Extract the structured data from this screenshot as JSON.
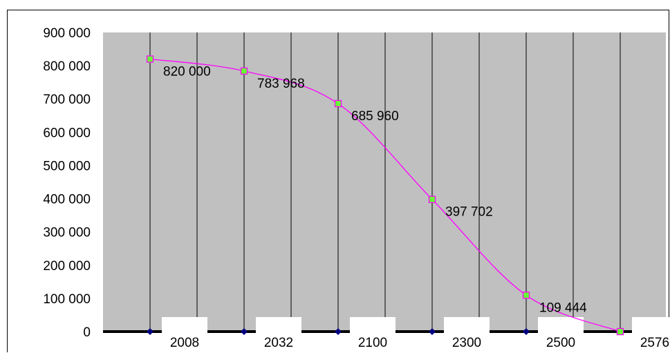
{
  "chart_data": {
    "type": "line",
    "categories": [
      "2008",
      "2032",
      "2100",
      "2300",
      "2500",
      "2576"
    ],
    "series": [
      {
        "values": [
          820000,
          783968,
          685960,
          397702,
          109444,
          0
        ]
      }
    ],
    "data_labels": [
      "820 000",
      "783 968",
      "685 960",
      "397 702",
      "109 444"
    ],
    "y_ticks": [
      {
        "value": 0,
        "label": "0"
      },
      {
        "value": 100000,
        "label": "100 000"
      },
      {
        "value": 200000,
        "label": "200 000"
      },
      {
        "value": 300000,
        "label": "300 000"
      },
      {
        "value": 400000,
        "label": "400 000"
      },
      {
        "value": 500000,
        "label": "500 000"
      },
      {
        "value": 600000,
        "label": "600 000"
      },
      {
        "value": 700000,
        "label": "700 000"
      },
      {
        "value": 800000,
        "label": "800 000"
      },
      {
        "value": 900000,
        "label": "900 000"
      }
    ],
    "ylim": [
      0,
      900000
    ],
    "grid": "vertical",
    "legend": "none",
    "colors": {
      "plot_background": "#c0c0c0",
      "line": "#ff00ff",
      "marker_fill": "#66ff33",
      "marker_edge": "#ff00ff",
      "axis_marker": "#000080"
    },
    "title": "",
    "xlabel": "",
    "ylabel": ""
  }
}
